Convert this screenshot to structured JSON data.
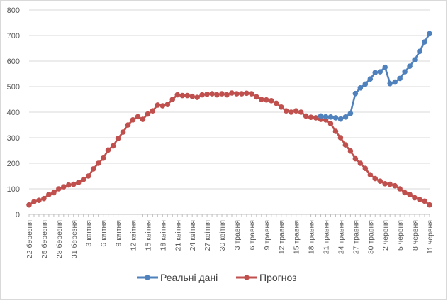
{
  "chart_data": {
    "type": "line",
    "title": "",
    "xlabel": "",
    "ylabel": "",
    "ylim": [
      0,
      800
    ],
    "yticks": [
      0,
      100,
      200,
      300,
      400,
      500,
      600,
      700,
      800
    ],
    "grid": "horizontal",
    "legend_position": "bottom",
    "x_tick_labels": [
      "22 березня",
      "25 березня",
      "28 березня",
      "31 березня",
      "3 квітня",
      "6 квітня",
      "9 квітня",
      "12 квітня",
      "15 квітня",
      "18 квітня",
      "21 квітня",
      "24 квітня",
      "27 квітня",
      "30 квітня",
      "3 травня",
      "6 травня",
      "9 травня",
      "12 травня",
      "15 травня",
      "18 травня",
      "21 травня",
      "24 травня",
      "27 травня",
      "30 травня",
      "2 червня",
      "5 червня",
      "8 червня",
      "11 червня"
    ],
    "x_count": 82,
    "series": [
      {
        "name": "Реальні дані",
        "color": "#4f81bd",
        "start_index": 59,
        "values": [
          385,
          382,
          381,
          378,
          373,
          381,
          395,
          473,
          495,
          510,
          530,
          555,
          558,
          576,
          512,
          518,
          532,
          558,
          580,
          605,
          638,
          675,
          707
        ]
      },
      {
        "name": "Прогноз",
        "color": "#c0504d",
        "start_index": 0,
        "values": [
          37,
          50,
          55,
          62,
          78,
          85,
          100,
          108,
          115,
          118,
          125,
          137,
          150,
          178,
          200,
          220,
          252,
          268,
          297,
          322,
          350,
          370,
          382,
          372,
          393,
          405,
          428,
          425,
          430,
          450,
          468,
          465,
          465,
          462,
          458,
          468,
          470,
          472,
          468,
          472,
          468,
          475,
          472,
          472,
          474,
          472,
          460,
          450,
          448,
          445,
          435,
          420,
          405,
          400,
          405,
          400,
          385,
          380,
          378,
          372,
          370,
          355,
          325,
          300,
          272,
          248,
          218,
          200,
          180,
          155,
          140,
          130,
          120,
          118,
          112,
          100,
          85,
          78,
          65,
          58,
          52,
          37
        ]
      }
    ]
  }
}
